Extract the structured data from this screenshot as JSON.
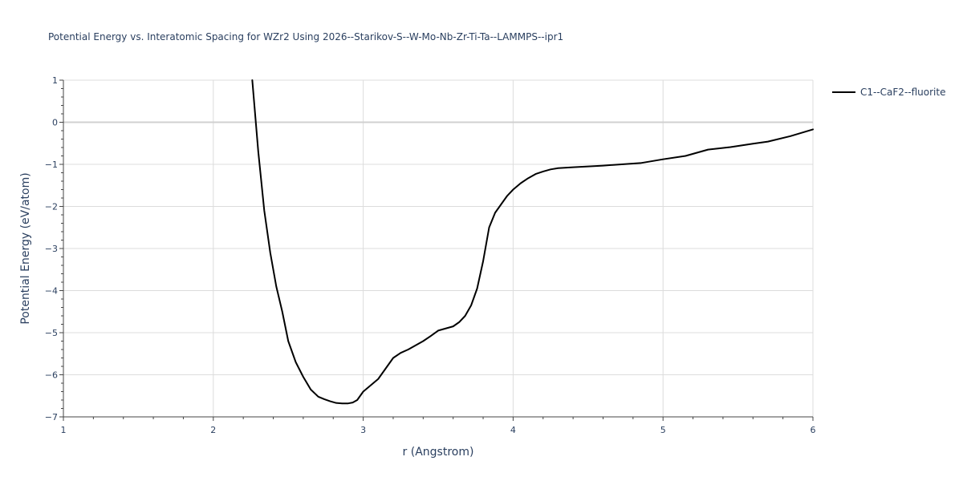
{
  "chart_data": {
    "type": "line",
    "title": "Potential Energy vs. Interatomic Spacing for WZr2 Using 2026--Starikov-S--W-Mo-Nb-Zr-Ti-Ta--LAMMPS--ipr1",
    "xlabel": "r (Angstrom)",
    "ylabel": "Potential Energy (eV/atom)",
    "xlim": [
      1,
      6
    ],
    "ylim": [
      -7,
      1
    ],
    "x_ticks": [
      1,
      2,
      3,
      4,
      5,
      6
    ],
    "y_ticks": [
      1,
      0,
      -1,
      -2,
      -3,
      -4,
      -5,
      -6,
      -7
    ],
    "x_tick_labels": [
      "1",
      "2",
      "3",
      "4",
      "5",
      "6"
    ],
    "y_tick_labels": [
      "1",
      "0",
      "−1",
      "−2",
      "−3",
      "−4",
      "−5",
      "−6",
      "−7"
    ],
    "grid": true,
    "zero_line": true,
    "legend_position": "top-right",
    "line_color": "#000000",
    "series": [
      {
        "name": "C1--CaF2--fluorite",
        "x": [
          2.26,
          2.3,
          2.34,
          2.38,
          2.42,
          2.46,
          2.5,
          2.55,
          2.6,
          2.65,
          2.7,
          2.74,
          2.78,
          2.82,
          2.86,
          2.9,
          2.93,
          2.96,
          3.0,
          3.05,
          3.1,
          3.15,
          3.2,
          3.25,
          3.3,
          3.35,
          3.4,
          3.45,
          3.5,
          3.55,
          3.6,
          3.64,
          3.68,
          3.72,
          3.76,
          3.8,
          3.84,
          3.88,
          3.92,
          3.96,
          4.0,
          4.05,
          4.1,
          4.15,
          4.2,
          4.25,
          4.3,
          4.4,
          4.6,
          4.85,
          5.0,
          5.15,
          5.3,
          5.45,
          5.6,
          5.7,
          5.85,
          6.0
        ],
        "y": [
          1.0,
          -0.7,
          -2.1,
          -3.1,
          -3.9,
          -4.5,
          -5.2,
          -5.7,
          -6.05,
          -6.35,
          -6.52,
          -6.58,
          -6.63,
          -6.67,
          -6.68,
          -6.68,
          -6.66,
          -6.6,
          -6.4,
          -6.25,
          -6.1,
          -5.85,
          -5.6,
          -5.48,
          -5.4,
          -5.3,
          -5.2,
          -5.08,
          -4.95,
          -4.9,
          -4.85,
          -4.75,
          -4.6,
          -4.35,
          -3.95,
          -3.3,
          -2.5,
          -2.15,
          -1.95,
          -1.75,
          -1.6,
          -1.45,
          -1.33,
          -1.23,
          -1.17,
          -1.12,
          -1.09,
          -1.07,
          -1.03,
          -0.97,
          -0.88,
          -0.8,
          -0.65,
          -0.59,
          -0.51,
          -0.46,
          -0.33,
          -0.17
        ]
      }
    ]
  }
}
